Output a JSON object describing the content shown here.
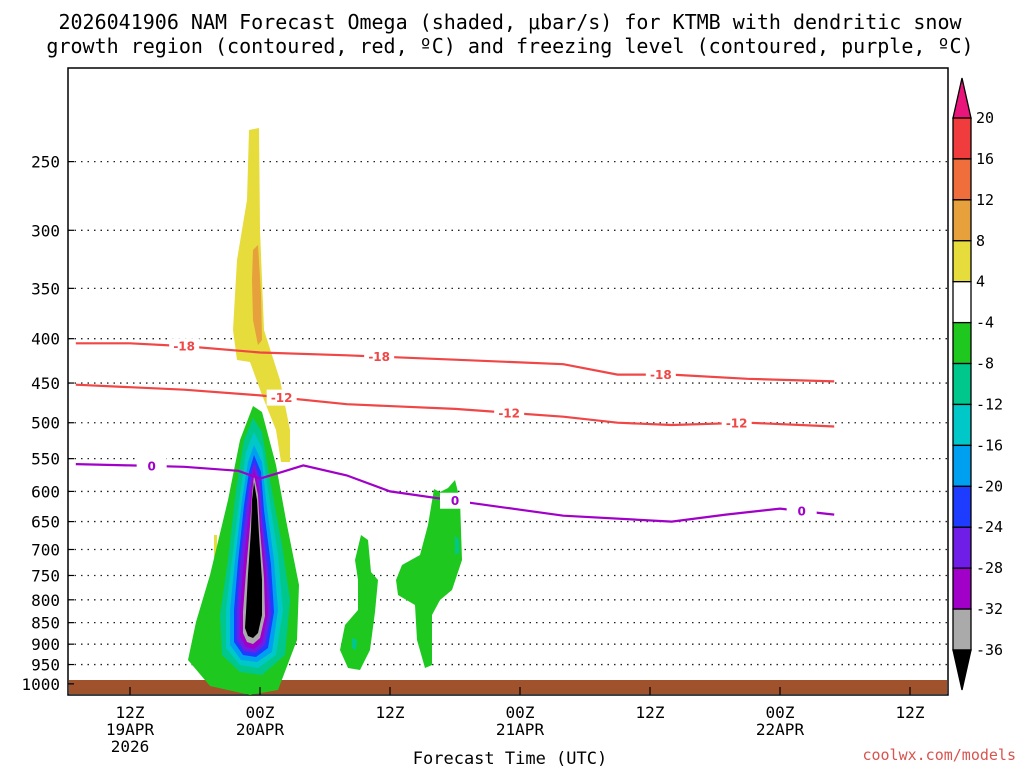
{
  "chart_data": {
    "type": "heatmap",
    "title_line1": "2026041906 NAM Forecast Omega (shaded, μbar/s) for KTMB with dendritic snow",
    "title_line2": "growth region (contoured, red, ºC) and freezing level (contoured, purple, ºC)",
    "xlabel": "Forecast Time (UTC)",
    "ylabel": "",
    "y_ticks": [
      250,
      300,
      350,
      400,
      450,
      500,
      550,
      600,
      650,
      700,
      750,
      800,
      850,
      900,
      950,
      1000
    ],
    "ylim": [
      1030,
      195
    ],
    "x_hours_range": [
      -5,
      65
    ],
    "x_ticks": [
      {
        "hour": 0,
        "l1": "12Z",
        "l2": "19APR",
        "l3": "2026"
      },
      {
        "hour": 12,
        "l1": "00Z",
        "l2": "20APR",
        "l3": ""
      },
      {
        "hour": 24,
        "l1": "12Z",
        "l2": "",
        "l3": ""
      },
      {
        "hour": 36,
        "l1": "00Z",
        "l2": "21APR",
        "l3": ""
      },
      {
        "hour": 48,
        "l1": "12Z",
        "l2": "",
        "l3": ""
      },
      {
        "hour": 60,
        "l1": "00Z",
        "l2": "22APR",
        "l3": ""
      },
      {
        "hour": 72,
        "l1": "12Z",
        "l2": "",
        "l3": ""
      }
    ],
    "colorbar": {
      "labels": [
        "20",
        "16",
        "12",
        "8",
        "4",
        "-4",
        "-8",
        "-12",
        "-16",
        "-20",
        "-24",
        "-28",
        "-32",
        "-36"
      ],
      "colors": [
        "#e8157b",
        "#f03c3c",
        "#f06e3c",
        "#e6a03c",
        "#e6dc3c",
        "#ffffff",
        "#1ec81e",
        "#00c88c",
        "#00c8c8",
        "#00a0f0",
        "#1e3cff",
        "#6e1ee6",
        "#a000c8",
        "#aaaaaa",
        "#000000"
      ]
    },
    "contours": [
      {
        "name": "snow-growth-minus18",
        "label": "-18",
        "color": "#f04646",
        "hours": [
          -5,
          0,
          5,
          12,
          20,
          30,
          40,
          45,
          50,
          57,
          65
        ],
        "values": [
          405,
          405,
          408,
          415,
          418,
          423,
          428,
          440,
          440,
          445,
          448
        ],
        "label_hours": [
          5,
          23,
          49
        ]
      },
      {
        "name": "snow-growth-minus12",
        "label": "-12",
        "color": "#f04646",
        "hours": [
          -5,
          0,
          5,
          12,
          20,
          30,
          40,
          45,
          50,
          57,
          65
        ],
        "values": [
          452,
          455,
          458,
          465,
          476,
          482,
          492,
          500,
          503,
          500,
          505
        ],
        "label_hours": [
          14,
          35,
          56
        ]
      },
      {
        "name": "freezing-level-0",
        "label": "0",
        "color": "#a000c8",
        "hours": [
          -5,
          0,
          5,
          10,
          12,
          14,
          16,
          20,
          24,
          30,
          40,
          50,
          55,
          60,
          65
        ],
        "values": [
          558,
          560,
          562,
          568,
          580,
          570,
          560,
          575,
          600,
          615,
          640,
          650,
          638,
          628,
          638
        ],
        "label_hours": [
          2,
          30,
          62
        ]
      }
    ],
    "credit": "coolwx.com/models"
  }
}
